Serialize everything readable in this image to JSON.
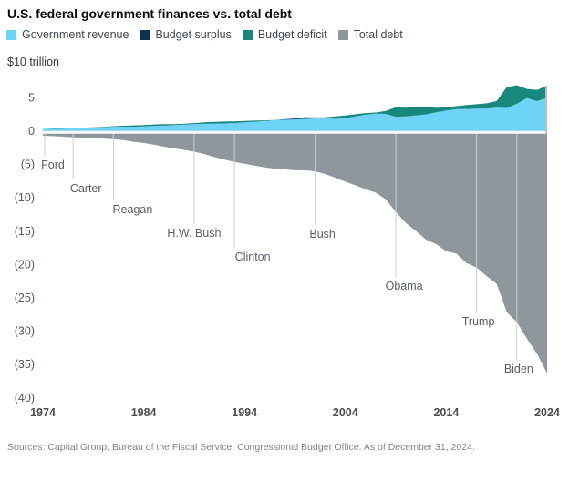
{
  "title": "U.S. federal government finances vs. total debt",
  "unit_label": "$10 trillion",
  "legend": {
    "items": [
      {
        "label": "Government revenue",
        "color": "#6ed3f6"
      },
      {
        "label": "Budget surplus",
        "color": "#0e3151"
      },
      {
        "label": "Budget deficit",
        "color": "#18877c"
      },
      {
        "label": "Total debt",
        "color": "#8f979d"
      }
    ]
  },
  "source_note": "Sources: Capital Group, Bureau of the Fiscal Service, Congressional Budget Office. As of December 31, 2024.",
  "chart_data": {
    "type": "area",
    "title": "U.S. federal government finances vs. total debt",
    "unit": "$ trillions",
    "xlim": [
      1974,
      2024
    ],
    "ylim": [
      -40,
      7.5
    ],
    "grid": "president-term-markers",
    "legend_position": "top",
    "x_ticks": [
      1974,
      1984,
      1994,
      2004,
      2014,
      2024
    ],
    "y_ticks": [
      {
        "label": "5",
        "value": 5
      },
      {
        "label": "0",
        "value": 0
      },
      {
        "label": "(5)",
        "value": -5
      },
      {
        "label": "(10)",
        "value": -10
      },
      {
        "label": "(15)",
        "value": -15
      },
      {
        "label": "(20)",
        "value": -20
      },
      {
        "label": "(25)",
        "value": -25
      },
      {
        "label": "(30)",
        "value": -30
      },
      {
        "label": "(35)",
        "value": -35
      },
      {
        "label": "(40)",
        "value": -40
      }
    ],
    "x": [
      1974,
      1975,
      1976,
      1977,
      1978,
      1979,
      1980,
      1981,
      1982,
      1983,
      1984,
      1985,
      1986,
      1987,
      1988,
      1989,
      1990,
      1991,
      1992,
      1993,
      1994,
      1995,
      1996,
      1997,
      1998,
      1999,
      2000,
      2001,
      2002,
      2003,
      2004,
      2005,
      2006,
      2007,
      2008,
      2009,
      2010,
      2011,
      2012,
      2013,
      2014,
      2015,
      2016,
      2017,
      2018,
      2019,
      2020,
      2021,
      2022,
      2023,
      2024
    ],
    "series": [
      {
        "name": "Government revenue",
        "values": [
          0.263,
          0.279,
          0.298,
          0.356,
          0.4,
          0.463,
          0.517,
          0.599,
          0.618,
          0.601,
          0.666,
          0.734,
          0.769,
          0.854,
          0.909,
          0.991,
          1.032,
          1.055,
          1.091,
          1.154,
          1.259,
          1.352,
          1.453,
          1.579,
          1.722,
          1.827,
          2.025,
          1.991,
          1.853,
          1.782,
          1.88,
          2.154,
          2.407,
          2.568,
          2.524,
          2.105,
          2.163,
          2.304,
          2.45,
          2.775,
          3.022,
          3.25,
          3.268,
          3.316,
          3.33,
          3.463,
          3.421,
          4.047,
          4.897,
          4.441,
          4.919
        ]
      },
      {
        "name": "Budget balance (surplus positive, deficit negative)",
        "values": [
          -0.006,
          -0.053,
          -0.074,
          -0.054,
          -0.059,
          -0.041,
          -0.074,
          -0.079,
          -0.128,
          -0.208,
          -0.185,
          -0.212,
          -0.221,
          -0.15,
          -0.155,
          -0.153,
          -0.221,
          -0.269,
          -0.29,
          -0.255,
          -0.203,
          -0.164,
          -0.107,
          -0.022,
          0.069,
          0.126,
          0.236,
          0.128,
          -0.158,
          -0.378,
          -0.413,
          -0.318,
          -0.248,
          -0.161,
          -0.459,
          -1.413,
          -1.294,
          -1.3,
          -1.087,
          -0.68,
          -0.485,
          -0.442,
          -0.585,
          -0.665,
          -0.779,
          -0.984,
          -3.132,
          -2.772,
          -1.375,
          -1.695,
          -1.833
        ]
      },
      {
        "name": "Total debt",
        "values": [
          0.48,
          0.53,
          0.62,
          0.7,
          0.78,
          0.83,
          0.91,
          0.99,
          1.14,
          1.38,
          1.57,
          1.82,
          2.12,
          2.35,
          2.6,
          2.87,
          3.23,
          3.67,
          4.06,
          4.41,
          4.69,
          4.97,
          5.22,
          5.41,
          5.53,
          5.66,
          5.67,
          5.81,
          6.23,
          6.78,
          7.38,
          7.93,
          8.51,
          9.01,
          10.02,
          11.91,
          13.56,
          14.79,
          16.07,
          16.74,
          17.82,
          18.15,
          19.57,
          20.24,
          21.52,
          22.72,
          26.95,
          28.43,
          30.93,
          33.17,
          36.1
        ]
      }
    ],
    "presidents": [
      {
        "name": "Ford",
        "term_start": 1974
      },
      {
        "name": "Carter",
        "term_start": 1977
      },
      {
        "name": "Reagan",
        "term_start": 1981
      },
      {
        "name": "H.W. Bush",
        "term_start": 1989
      },
      {
        "name": "Clinton",
        "term_start": 1993
      },
      {
        "name": "Bush",
        "term_start": 2001
      },
      {
        "name": "Obama",
        "term_start": 2009
      },
      {
        "name": "Trump",
        "term_start": 2017
      },
      {
        "name": "Biden",
        "term_start": 2021
      }
    ]
  }
}
